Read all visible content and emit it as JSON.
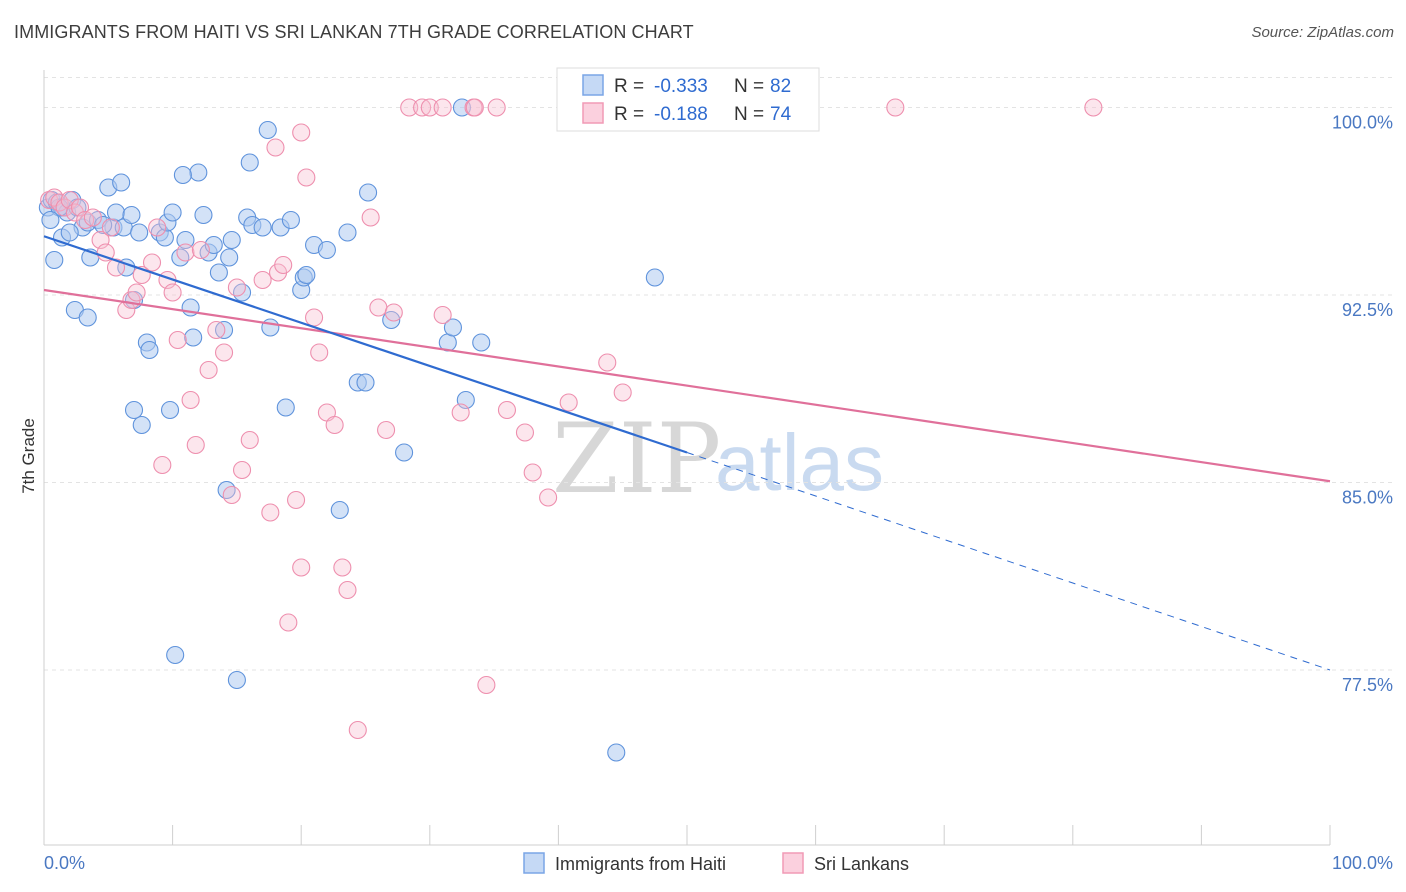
{
  "title": "IMMIGRANTS FROM HAITI VS SRI LANKAN 7TH GRADE CORRELATION CHART",
  "source": "Source: ZipAtlas.com",
  "watermark": {
    "zip": "ZIP",
    "atlas": "atlas"
  },
  "legend": {
    "r_label": "R =",
    "n_label": "N =",
    "rows": [
      {
        "r": "-0.333",
        "n": "82",
        "color": "#7aa5e6"
      },
      {
        "r": "-0.188",
        "n": "74",
        "color": "#f19ab5"
      }
    ]
  },
  "bottom_legend": [
    {
      "label": "Immigrants from Haiti",
      "color": "#7aa5e6"
    },
    {
      "label": "Sri Lankans",
      "color": "#f19ab5"
    }
  ],
  "chart_data": {
    "type": "scatter",
    "title": "IMMIGRANTS FROM HAITI VS SRI LANKAN 7TH GRADE CORRELATION CHART",
    "xlabel": "",
    "ylabel": "7th Grade",
    "xlim": [
      0,
      100
    ],
    "ylim": [
      70.5,
      101.5
    ],
    "x_tick_labels": [
      "0.0%",
      "100.0%"
    ],
    "y_ticks": [
      77.5,
      85.0,
      92.5,
      100.0
    ],
    "y_tick_labels": [
      "77.5%",
      "85.0%",
      "92.5%",
      "100.0%"
    ],
    "grid": true,
    "series": [
      {
        "name": "Immigrants from Haiti",
        "color": "#7aa5e6",
        "trend_color": "#2f6bd0",
        "trend": {
          "x0": 0,
          "y0": 94.85,
          "x1": 50,
          "y1": 86.2,
          "dash_to_x": 100,
          "dash_to_y": 77.5
        },
        "points": [
          [
            0.3,
            96.0
          ],
          [
            0.6,
            96.3
          ],
          [
            1.0,
            96.2
          ],
          [
            1.4,
            96.0
          ],
          [
            1.8,
            95.8
          ],
          [
            2.2,
            96.3
          ],
          [
            2.6,
            96.0
          ],
          [
            3.0,
            95.2
          ],
          [
            3.4,
            95.4
          ],
          [
            0.8,
            93.9
          ],
          [
            1.4,
            94.8
          ],
          [
            2.0,
            95.0
          ],
          [
            3.6,
            94.0
          ],
          [
            4.2,
            95.5
          ],
          [
            5.0,
            96.8
          ],
          [
            5.4,
            95.2
          ],
          [
            5.6,
            95.8
          ],
          [
            6.0,
            97.0
          ],
          [
            6.2,
            95.2
          ],
          [
            6.4,
            93.6
          ],
          [
            6.8,
            95.7
          ],
          [
            7.0,
            92.3
          ],
          [
            7.4,
            95.0
          ],
          [
            7.6,
            87.3
          ],
          [
            7.0,
            87.9
          ],
          [
            8.0,
            90.6
          ],
          [
            8.2,
            90.3
          ],
          [
            9.0,
            95.0
          ],
          [
            9.4,
            94.8
          ],
          [
            9.6,
            95.4
          ],
          [
            10.0,
            95.8
          ],
          [
            10.6,
            94.0
          ],
          [
            11.0,
            94.7
          ],
          [
            11.4,
            92.0
          ],
          [
            11.6,
            90.8
          ],
          [
            9.8,
            87.9
          ],
          [
            10.2,
            78.1
          ],
          [
            12.4,
            95.7
          ],
          [
            12.8,
            94.2
          ],
          [
            13.2,
            94.5
          ],
          [
            13.6,
            93.4
          ],
          [
            14.0,
            91.1
          ],
          [
            14.4,
            94.0
          ],
          [
            14.6,
            94.7
          ],
          [
            15.0,
            77.1
          ],
          [
            15.4,
            92.6
          ],
          [
            15.8,
            95.6
          ],
          [
            16.2,
            95.3
          ],
          [
            17.0,
            95.2
          ],
          [
            17.6,
            91.2
          ],
          [
            18.4,
            95.2
          ],
          [
            18.8,
            88.0
          ],
          [
            19.2,
            95.5
          ],
          [
            20.0,
            92.7
          ],
          [
            20.2,
            93.2
          ],
          [
            20.4,
            93.3
          ],
          [
            21.0,
            94.5
          ],
          [
            22.0,
            94.3
          ],
          [
            23.0,
            83.9
          ],
          [
            23.6,
            95.0
          ],
          [
            24.4,
            89.0
          ],
          [
            25.0,
            89.0
          ],
          [
            25.2,
            96.6
          ],
          [
            27.0,
            91.5
          ],
          [
            28.0,
            86.2
          ],
          [
            12.0,
            97.4
          ],
          [
            16.0,
            97.8
          ],
          [
            17.4,
            99.1
          ],
          [
            2.4,
            91.9
          ],
          [
            3.4,
            91.6
          ],
          [
            1.2,
            96.0
          ],
          [
            10.8,
            97.3
          ],
          [
            14.2,
            84.7
          ],
          [
            31.4,
            90.6
          ],
          [
            31.8,
            91.2
          ],
          [
            32.8,
            88.3
          ],
          [
            34.0,
            90.6
          ],
          [
            32.5,
            100.0
          ],
          [
            44.5,
            74.2
          ],
          [
            47.5,
            93.2
          ],
          [
            0.5,
            95.5
          ],
          [
            4.6,
            95.3
          ]
        ]
      },
      {
        "name": "Sri Lankans",
        "color": "#f19ab5",
        "trend_color": "#e0709a",
        "trend": {
          "x0": 0,
          "y0": 92.7,
          "x1": 100,
          "y1": 85.05
        },
        "points": [
          [
            0.4,
            96.3
          ],
          [
            0.8,
            96.4
          ],
          [
            1.2,
            96.2
          ],
          [
            1.6,
            96.0
          ],
          [
            2.0,
            96.3
          ],
          [
            2.4,
            95.8
          ],
          [
            2.8,
            96.0
          ],
          [
            3.2,
            95.5
          ],
          [
            3.8,
            95.6
          ],
          [
            4.4,
            94.7
          ],
          [
            4.8,
            94.2
          ],
          [
            5.2,
            95.2
          ],
          [
            5.6,
            93.6
          ],
          [
            6.4,
            91.9
          ],
          [
            6.8,
            92.3
          ],
          [
            7.2,
            92.6
          ],
          [
            7.6,
            93.3
          ],
          [
            8.4,
            93.8
          ],
          [
            8.8,
            95.2
          ],
          [
            9.2,
            85.7
          ],
          [
            9.6,
            93.1
          ],
          [
            10.0,
            92.6
          ],
          [
            10.4,
            90.7
          ],
          [
            11.0,
            94.2
          ],
          [
            11.4,
            88.3
          ],
          [
            11.8,
            86.5
          ],
          [
            12.2,
            94.3
          ],
          [
            12.8,
            89.5
          ],
          [
            13.4,
            91.1
          ],
          [
            14.0,
            90.2
          ],
          [
            14.6,
            84.5
          ],
          [
            15.0,
            92.8
          ],
          [
            15.4,
            85.5
          ],
          [
            16.0,
            86.7
          ],
          [
            17.0,
            93.1
          ],
          [
            17.6,
            83.8
          ],
          [
            18.2,
            93.4
          ],
          [
            18.6,
            93.7
          ],
          [
            19.0,
            79.4
          ],
          [
            19.6,
            84.3
          ],
          [
            20.0,
            81.6
          ],
          [
            20.4,
            97.2
          ],
          [
            21.0,
            91.6
          ],
          [
            21.4,
            90.2
          ],
          [
            22.0,
            87.8
          ],
          [
            22.6,
            87.3
          ],
          [
            23.2,
            81.6
          ],
          [
            23.6,
            80.7
          ],
          [
            24.4,
            75.1
          ],
          [
            25.4,
            95.6
          ],
          [
            26.0,
            92.0
          ],
          [
            26.6,
            87.1
          ],
          [
            27.2,
            91.8
          ],
          [
            28.4,
            100.0
          ],
          [
            29.4,
            100.0
          ],
          [
            30.0,
            100.0
          ],
          [
            31.0,
            91.7
          ],
          [
            32.4,
            87.8
          ],
          [
            33.4,
            100.0
          ],
          [
            34.4,
            76.9
          ],
          [
            35.2,
            100.0
          ],
          [
            36.0,
            87.9
          ],
          [
            37.4,
            87.0
          ],
          [
            38.0,
            85.4
          ],
          [
            39.2,
            84.4
          ],
          [
            40.8,
            88.2
          ],
          [
            43.8,
            89.8
          ],
          [
            45.0,
            88.6
          ],
          [
            18.0,
            98.4
          ],
          [
            20.0,
            99.0
          ],
          [
            33.5,
            100.0
          ],
          [
            31.0,
            100.0
          ],
          [
            66.2,
            100.0
          ],
          [
            81.6,
            100.0
          ]
        ]
      }
    ]
  }
}
